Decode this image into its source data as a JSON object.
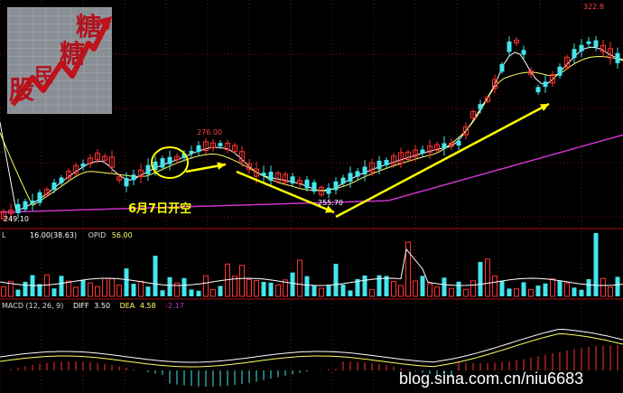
{
  "logo": {
    "chars": [
      "股",
      "民",
      "糖",
      "糖"
    ]
  },
  "main_panel": {
    "price_high": "276.00",
    "price_low": "255.70",
    "price_start": "249.10",
    "price_top": "322.8"
  },
  "callout": {
    "text": "6月7日开空"
  },
  "volume_panel": {
    "prefix": "L",
    "value_text": "16.00(38.63)",
    "opid_label": "OPID",
    "opid_value": "56.00"
  },
  "macd_panel": {
    "title": "MACD (12, 26, 9)",
    "diff_label": "DIFF",
    "diff_value": "3.50",
    "dea_label": "DEA",
    "dea_value": "4.58",
    "macd_value": "-2.17"
  },
  "watermark": {
    "text": "blog.sina.com.cn/niu6683"
  },
  "colors": {
    "up": "#ff3333",
    "down": "#44e5ee",
    "ma_white": "#ffffff",
    "ma_yellow": "#ffff66",
    "ma_purple": "#cc33cc",
    "annotation": "#ffff00",
    "grid": "#7a1010"
  }
}
